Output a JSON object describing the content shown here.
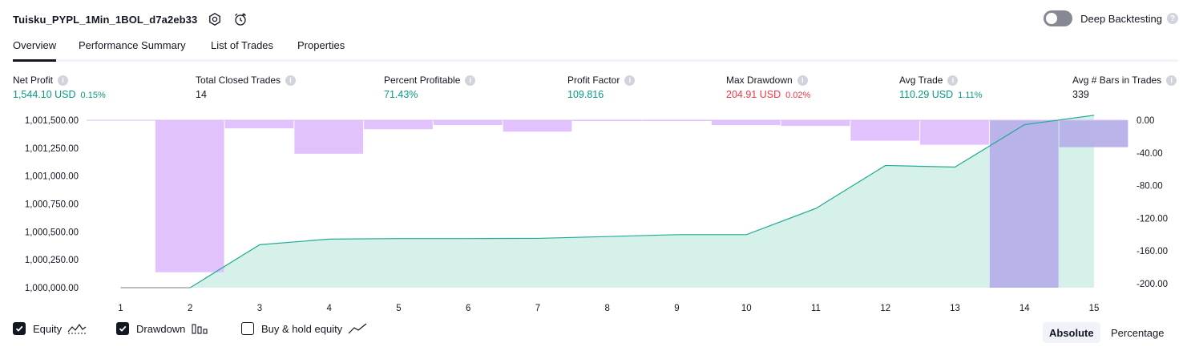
{
  "strategy": {
    "title": "Tuisku_PYPL_1Min_1BOL_d7a2eb33"
  },
  "deep_backtesting": {
    "label": "Deep Backtesting",
    "help": "?"
  },
  "tabs": [
    {
      "label": "Overview",
      "active": true
    },
    {
      "label": "Performance Summary",
      "active": false
    },
    {
      "label": "List of Trades",
      "active": false
    },
    {
      "label": "Properties",
      "active": false
    }
  ],
  "metrics": [
    {
      "label": "Net Profit",
      "value": "1,544.10 USD",
      "percent": "0.15%",
      "tone": "green"
    },
    {
      "label": "Total Closed Trades",
      "value": "14",
      "percent": "",
      "tone": "neutral"
    },
    {
      "label": "Percent Profitable",
      "value": "71.43%",
      "percent": "",
      "tone": "green"
    },
    {
      "label": "Profit Factor",
      "value": "109.816",
      "percent": "",
      "tone": "green"
    },
    {
      "label": "Max Drawdown",
      "value": "204.91 USD",
      "percent": "0.02%",
      "tone": "red"
    },
    {
      "label": "Avg Trade",
      "value": "110.29 USD",
      "percent": "1.11%",
      "tone": "green"
    },
    {
      "label": "Avg # Bars in Trades",
      "value": "339",
      "percent": "",
      "tone": "neutral"
    }
  ],
  "info_glyph": "i",
  "chart_data": {
    "type": "line",
    "x": [
      1,
      2,
      3,
      4,
      5,
      6,
      7,
      8,
      9,
      10,
      11,
      12,
      13,
      14,
      15
    ],
    "left_ticks": [
      "1,001,500.00",
      "1,001,250.00",
      "1,001,000.00",
      "1,000,750.00",
      "1,000,500.00",
      "1,000,250.00",
      "1,000,000.00"
    ],
    "right_ticks": [
      "0.00",
      "-40.00",
      "-80.00",
      "-120.00",
      "-160.00",
      "-200.00"
    ],
    "left_ylim": [
      1000000,
      1001500
    ],
    "right_ylim": [
      -204.91,
      0
    ],
    "series": [
      {
        "name": "Equity",
        "axis": "left",
        "values": [
          1000000,
          1000000,
          1000385,
          1000435,
          1000440,
          1000440,
          1000442,
          1000458,
          1000475,
          1000475,
          1000710,
          1001095,
          1001080,
          1001460,
          1001544
        ]
      },
      {
        "name": "Drawdown",
        "axis": "right",
        "values": [
          null,
          -186,
          -10,
          -41,
          -11,
          -6,
          -14,
          -1,
          -1,
          -6,
          -7,
          -25,
          -30,
          -204.91,
          -33
        ]
      }
    ],
    "colors": {
      "equity_line": "#22ab94",
      "equity_fill": "#d6f0ea",
      "equity_flat": "#9598a1",
      "drawdown_fill": "#e1c2fc",
      "drawdown_overlap": "#b6b0ea",
      "drawdown_top": "#dcbdf7"
    }
  },
  "legend": {
    "equity": {
      "label": "Equity",
      "checked": true
    },
    "drawdown": {
      "label": "Drawdown",
      "checked": true
    },
    "buy_hold": {
      "label": "Buy & hold equity",
      "checked": false
    }
  },
  "modes": {
    "absolute": "Absolute",
    "percentage": "Percentage"
  }
}
